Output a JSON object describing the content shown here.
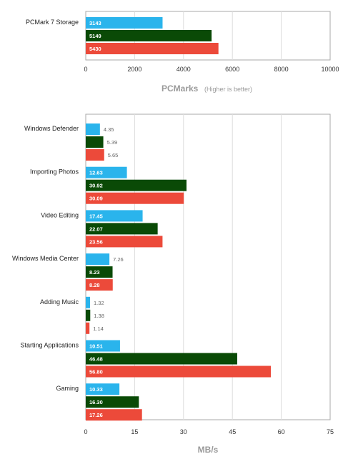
{
  "colors": {
    "series": [
      "#2ab4ec",
      "#0a4a06",
      "#ec4a3a"
    ],
    "frame": "#aaaaaa",
    "grid": "#dddddd"
  },
  "chart_data": [
    {
      "type": "bar",
      "orientation": "horizontal",
      "categories": [
        "PCMark 7 Storage"
      ],
      "series": [
        {
          "values": [
            3143
          ]
        },
        {
          "values": [
            5149
          ]
        },
        {
          "values": [
            5430
          ]
        }
      ],
      "xlabel": "PCMarks",
      "xlabel_note": "(Higher is better)",
      "xlim": [
        0,
        10000
      ],
      "xticks": [
        0,
        2000,
        4000,
        6000,
        8000,
        10000
      ],
      "grid": true
    },
    {
      "type": "bar",
      "orientation": "horizontal",
      "categories": [
        "Windows Defender",
        "Importing Photos",
        "Video Editing",
        "Windows Media Center",
        "Adding Music",
        "Starting Applications",
        "Gaming"
      ],
      "series": [
        {
          "values": [
            4.35,
            12.63,
            17.45,
            7.26,
            1.32,
            10.51,
            10.33
          ]
        },
        {
          "values": [
            5.39,
            30.92,
            22.07,
            8.23,
            1.38,
            46.48,
            16.3
          ]
        },
        {
          "values": [
            5.65,
            30.09,
            23.56,
            8.28,
            1.14,
            56.8,
            17.26
          ]
        }
      ],
      "labels": [
        [
          "4.35",
          "12.63",
          "17.45",
          "7.26",
          "1.32",
          "10.51",
          "10.33"
        ],
        [
          "5.39",
          "30.92",
          "22.07",
          "8.23",
          "1.38",
          "46.48",
          "16.30"
        ],
        [
          "5.65",
          "30.09",
          "23.56",
          "8.28",
          "1.14",
          "56.80",
          "17.26"
        ]
      ],
      "xlabel": "MB/s",
      "xlim": [
        0,
        75
      ],
      "xticks": [
        0,
        15,
        30,
        45,
        60,
        75
      ],
      "grid": true
    }
  ]
}
